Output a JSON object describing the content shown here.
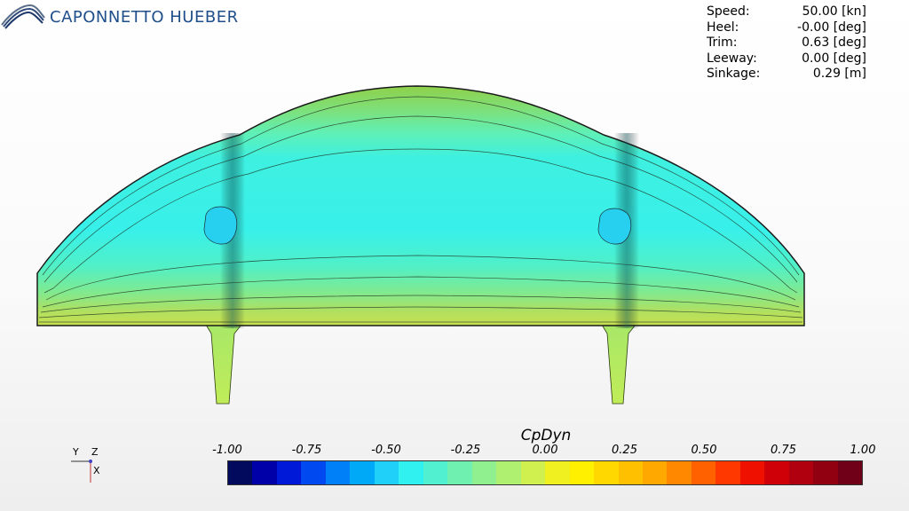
{
  "logo": {
    "text": "CAPONNETTO HUEBER"
  },
  "readout": [
    {
      "label": "Speed:",
      "value": "50.00 [kn]"
    },
    {
      "label": "Heel:",
      "value": "-0.00 [deg]"
    },
    {
      "label": "Trim:",
      "value": "0.63 [deg]"
    },
    {
      "label": "Leeway:",
      "value": "0.00 [deg]"
    },
    {
      "label": "Sinkage:",
      "value": "0.29 [m]"
    }
  ],
  "axes": {
    "y": "Y",
    "z": "Z",
    "x": "X"
  },
  "colorbar": {
    "title": "CpDyn",
    "ticks": [
      "-1.00",
      "-0.75",
      "-0.50",
      "-0.25",
      "0.00",
      "0.25",
      "0.50",
      "0.75",
      "1.00"
    ],
    "colors": [
      "#020a5e",
      "#0000a8",
      "#0018d8",
      "#0048f0",
      "#0080f8",
      "#00a8f8",
      "#20d0f8",
      "#30f0f0",
      "#50f0d0",
      "#70f0b0",
      "#90f090",
      "#b0f070",
      "#d0f050",
      "#f0f020",
      "#fff000",
      "#ffd800",
      "#ffc000",
      "#ffa800",
      "#ff8800",
      "#ff6000",
      "#ff3800",
      "#f01000",
      "#d00008",
      "#b00010",
      "#900010",
      "#700018"
    ]
  }
}
